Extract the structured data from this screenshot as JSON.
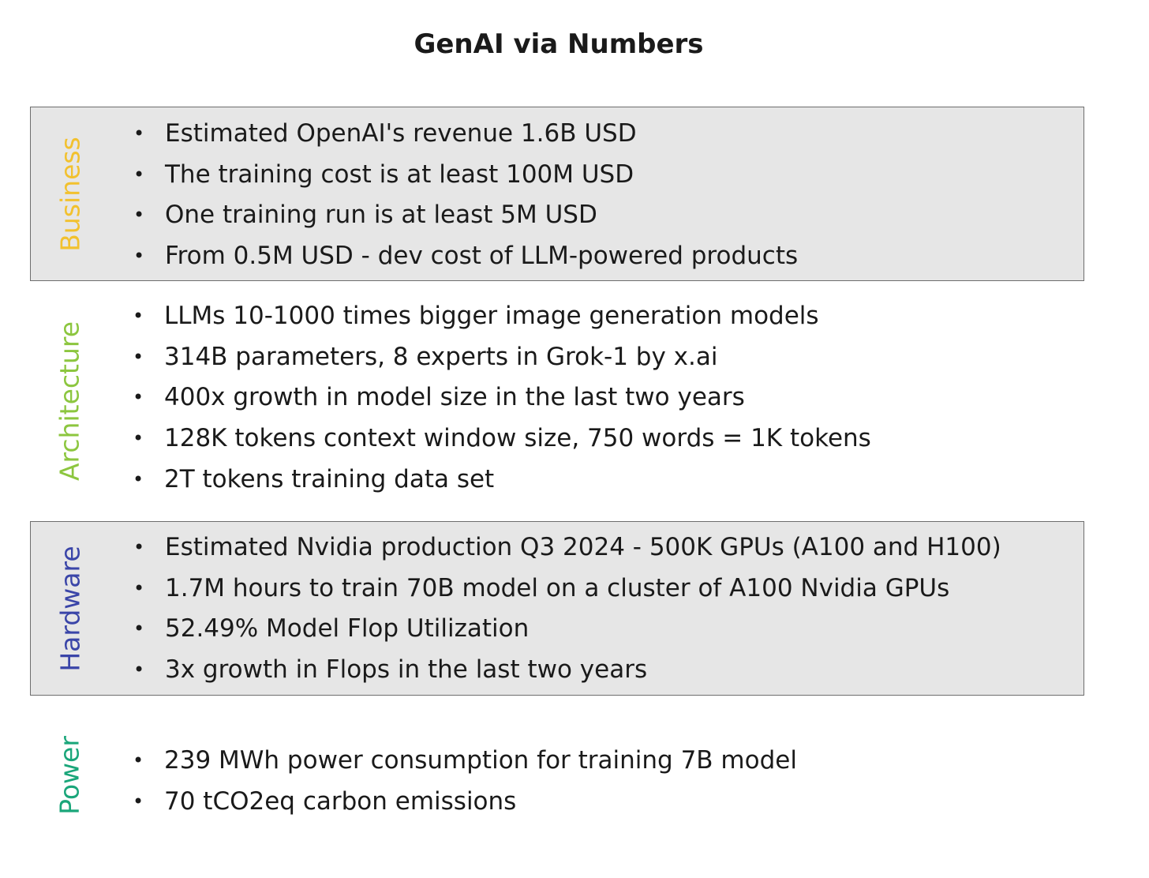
{
  "title": "GenAI via Numbers",
  "colors": {
    "business": "#f2c12e",
    "architecture": "#8cc63f",
    "hardware": "#3a45a8",
    "power": "#1aa67a",
    "shade": "#e6e6e6"
  },
  "sections": [
    {
      "label": "Business",
      "items": [
        "Estimated OpenAI's revenue 1.6B USD",
        "The training cost is at least 100M USD",
        "One training run is at least 5M USD",
        "From 0.5M USD - dev cost of LLM-powered products"
      ]
    },
    {
      "label": "Architecture",
      "items": [
        "LLMs 10-1000 times bigger image generation models",
        "314B parameters, 8 experts in Grok-1 by x.ai",
        "400x growth in model size in the last two years",
        "128K tokens context window size, 750 words = 1K tokens",
        "2T tokens training data set"
      ]
    },
    {
      "label": "Hardware",
      "items": [
        "Estimated Nvidia production Q3 2024 - 500K GPUs (A100 and H100)",
        "1.7M hours to train 70B model on a cluster of A100 Nvidia GPUs",
        "52.49% Model Flop Utilization",
        "3x growth in Flops in the last two years"
      ]
    },
    {
      "label": "Power",
      "items": [
        "239 MWh power consumption for training 7B model",
        "70 tCO2eq carbon emissions"
      ]
    }
  ]
}
